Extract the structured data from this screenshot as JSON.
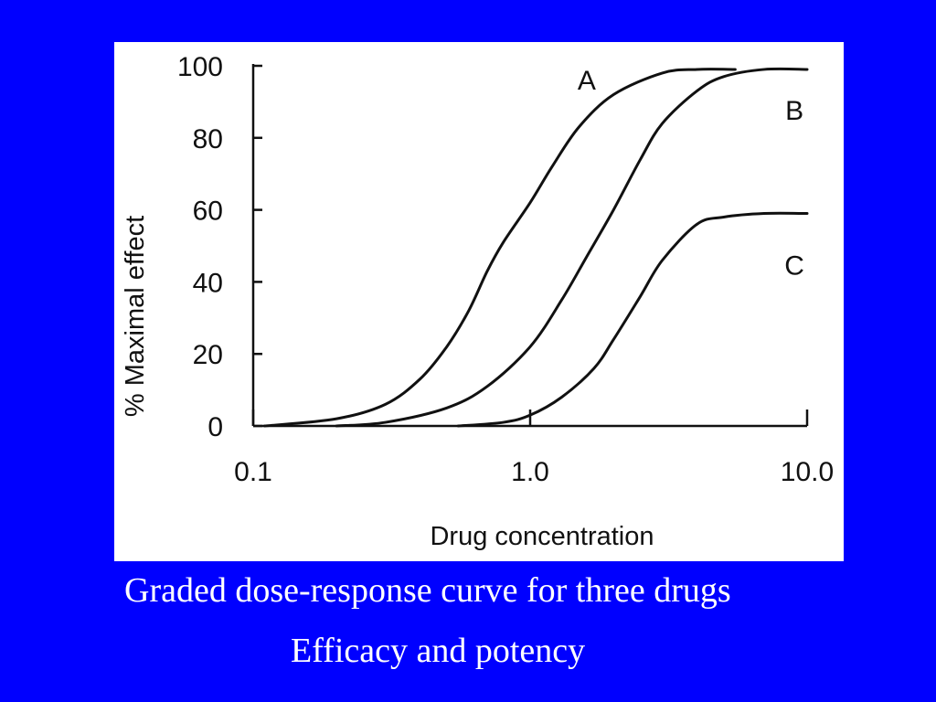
{
  "slide": {
    "background_color": "#0000ff",
    "caption_line_1": "Graded dose-response curve for three drugs",
    "caption_line_2": "Efficacy and potency"
  },
  "chart_data": {
    "type": "line",
    "xscale": "log",
    "xlabel": "Drug concentration",
    "ylabel": "% Maximal effect",
    "xlim": [
      0.1,
      10.0
    ],
    "ylim": [
      0,
      100
    ],
    "xticks": [
      0.1,
      1.0,
      10.0
    ],
    "xtick_labels": [
      "0.1",
      "1.0",
      "10.0"
    ],
    "yticks": [
      0,
      20,
      40,
      60,
      80,
      100
    ],
    "ytick_labels": [
      "0",
      "20",
      "40",
      "60",
      "80",
      "100"
    ],
    "grid": false,
    "line_color": "#111111",
    "series": [
      {
        "name": "A",
        "x": [
          0.11,
          0.2,
          0.3,
          0.4,
          0.5,
          0.6,
          0.7,
          0.8,
          1.0,
          1.2,
          1.5,
          2.0,
          3.0,
          4.0,
          5.5
        ],
        "y": [
          0,
          2,
          6,
          13,
          22,
          32,
          43,
          51,
          62,
          72,
          83,
          92,
          98,
          99,
          99
        ]
      },
      {
        "name": "B",
        "x": [
          0.2,
          0.3,
          0.5,
          0.7,
          1.0,
          1.3,
          1.6,
          2.0,
          2.5,
          3.0,
          4.0,
          5.0,
          7.0,
          10.0
        ],
        "y": [
          0,
          1,
          5,
          11,
          22,
          35,
          47,
          60,
          74,
          84,
          93,
          97,
          99,
          99
        ]
      },
      {
        "name": "C",
        "x": [
          0.55,
          0.8,
          1.0,
          1.3,
          1.7,
          2.0,
          2.5,
          3.0,
          4.0,
          5.0,
          7.0,
          10.0
        ],
        "y": [
          0,
          1,
          3,
          8,
          16,
          24,
          36,
          46,
          56,
          58,
          59,
          59
        ]
      }
    ]
  }
}
